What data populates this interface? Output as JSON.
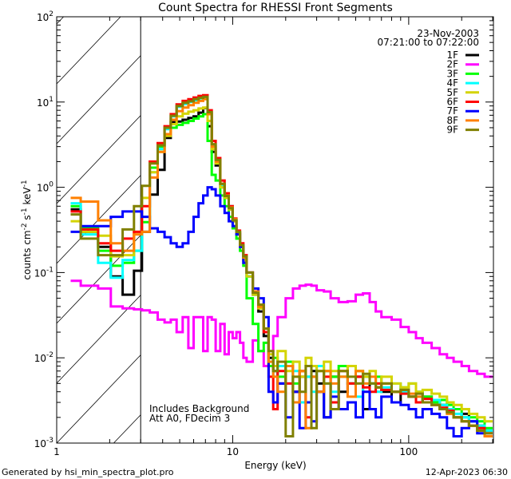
{
  "chart_data": {
    "type": "line",
    "title": "Count Spectra for RHESSI Front Segments",
    "xlabel": "Energy (keV)",
    "ylabel_parts": [
      {
        "t": "counts cm"
      },
      {
        "sup": "-2"
      },
      {
        "t": " s"
      },
      {
        "sup": "-1"
      },
      {
        "t": " keV"
      },
      {
        "sup": "-1"
      }
    ],
    "xscale": "log",
    "yscale": "log",
    "xlim": [
      1,
      303
    ],
    "ylim": [
      0.001,
      100
    ],
    "x_ticks": [
      {
        "v": 1,
        "label": "1"
      },
      {
        "v": 10,
        "label": "10"
      },
      {
        "v": 100,
        "label": "100"
      }
    ],
    "y_ticks": [
      {
        "v": 100,
        "base": "10",
        "exp": "2"
      },
      {
        "v": 10,
        "base": "10",
        "exp": "1"
      },
      {
        "v": 1,
        "base": "10",
        "exp": "0"
      },
      {
        "v": 0.1,
        "base": "10",
        "exp": "-1"
      },
      {
        "v": 0.01,
        "base": "10",
        "exp": "-2"
      },
      {
        "v": 0.001,
        "base": "10",
        "exp": "-3"
      }
    ],
    "grid": false,
    "hatched_region_keV": [
      1,
      3
    ],
    "date": "23-Nov-2003",
    "time_range": "07:21:00 to 07:22:00",
    "legend_placement": "top-right",
    "annotations": [
      "Includes Background",
      "Att A0, FDecim 3"
    ],
    "energy_bin_edges": [
      1.2,
      1.37,
      1.72,
      2.03,
      2.37,
      2.75,
      3.05,
      3.38,
      3.75,
      4.1,
      4.45,
      4.8,
      5.2,
      5.6,
      6.0,
      6.4,
      6.8,
      7.2,
      7.6,
      8.0,
      8.5,
      9,
      9.5,
      10,
      10.5,
      11,
      11.5,
      12,
      13,
      14,
      15,
      16,
      17,
      18,
      20,
      22,
      24,
      26,
      28,
      30,
      33,
      36,
      40,
      45,
      50,
      55,
      60,
      65,
      70,
      80,
      90,
      100,
      110,
      120,
      135,
      150,
      165,
      180,
      200,
      220,
      245,
      270,
      300
    ],
    "series": [
      {
        "name": "1F",
        "color": "#000000",
        "values": [
          0.55,
          0.3,
          0.2,
          0.09,
          0.055,
          0.105,
          0.3,
          0.82,
          1.6,
          3.8,
          5.8,
          5.9,
          6.2,
          6.5,
          6.8,
          7.5,
          8.5,
          5.2,
          2.6,
          1.8,
          1.0,
          0.75,
          0.55,
          0.4,
          0.29,
          0.2,
          0.14,
          0.09,
          0.055,
          0.035,
          0.018,
          0.01,
          0.007,
          0.005,
          0.008,
          0.004,
          0.006,
          0.003,
          0.007,
          0.005,
          0.002,
          0.006,
          0.004,
          0.005,
          0.006,
          0.0025,
          0.005,
          0.0045,
          0.004,
          0.003,
          0.004,
          0.0035,
          0.003,
          0.0035,
          0.003,
          0.0028,
          0.0025,
          0.002,
          0.0022,
          0.0018,
          0.0016,
          0.0014
        ]
      },
      {
        "name": "2F",
        "color": "#ff00ff",
        "values": [
          0.08,
          0.07,
          0.065,
          0.04,
          0.038,
          0.037,
          0.036,
          0.034,
          0.028,
          0.026,
          0.028,
          0.02,
          0.03,
          0.013,
          0.03,
          0.03,
          0.012,
          0.03,
          0.028,
          0.012,
          0.025,
          0.011,
          0.02,
          0.017,
          0.02,
          0.015,
          0.01,
          0.009,
          0.016,
          0.012,
          0.008,
          0.012,
          0.018,
          0.03,
          0.05,
          0.065,
          0.07,
          0.072,
          0.07,
          0.062,
          0.06,
          0.05,
          0.045,
          0.046,
          0.055,
          0.057,
          0.045,
          0.035,
          0.03,
          0.028,
          0.023,
          0.02,
          0.017,
          0.015,
          0.013,
          0.011,
          0.01,
          0.009,
          0.008,
          0.007,
          0.0065,
          0.006
        ]
      },
      {
        "name": "3F",
        "color": "#00ff00",
        "values": [
          0.6,
          0.33,
          0.18,
          0.12,
          0.13,
          0.18,
          0.39,
          1.7,
          3.0,
          4.2,
          5.0,
          5.4,
          5.7,
          6.0,
          6.4,
          6.8,
          7.2,
          3.5,
          1.4,
          1.2,
          0.8,
          0.6,
          0.45,
          0.33,
          0.25,
          0.18,
          0.12,
          0.05,
          0.025,
          0.012,
          0.015,
          0.008,
          0.01,
          0.006,
          0.009,
          0.005,
          0.007,
          0.006,
          0.008,
          0.004,
          0.007,
          0.006,
          0.008,
          0.005,
          0.007,
          0.006,
          0.005,
          0.006,
          0.005,
          0.004,
          0.0045,
          0.005,
          0.004,
          0.0035,
          0.003,
          0.0032,
          0.0028,
          0.0025,
          0.002,
          0.002,
          0.0018,
          0.0015
        ]
      },
      {
        "name": "4F",
        "color": "#00ffff",
        "values": [
          0.65,
          0.28,
          0.13,
          0.087,
          0.14,
          0.18,
          0.45,
          1.5,
          2.8,
          4.8,
          6.8,
          8.8,
          9.5,
          10.0,
          10.5,
          11.0,
          11.2,
          7.4,
          3.1,
          2.0,
          1.05,
          0.8,
          0.6,
          0.42,
          0.3,
          0.2,
          0.15,
          0.09,
          0.055,
          0.04,
          0.02,
          0.009,
          0.006,
          0.008,
          0.005,
          0.007,
          0.003,
          0.006,
          0.004,
          0.008,
          0.005,
          0.004,
          0.006,
          0.005,
          0.0035,
          0.006,
          0.005,
          0.004,
          0.0045,
          0.005,
          0.004,
          0.0035,
          0.004,
          0.003,
          0.0032,
          0.0028,
          0.0025,
          0.0022,
          0.002,
          0.0018,
          0.0016,
          0.0014
        ]
      },
      {
        "name": "5F",
        "color": "#d4d400",
        "values": [
          0.4,
          0.3,
          0.27,
          0.155,
          0.16,
          0.3,
          0.75,
          1.5,
          2.6,
          4.0,
          5.5,
          6.8,
          7.3,
          7.7,
          8.0,
          8.4,
          8.6,
          6.0,
          2.8,
          1.9,
          1.0,
          0.75,
          0.55,
          0.4,
          0.29,
          0.2,
          0.14,
          0.09,
          0.055,
          0.038,
          0.02,
          0.011,
          0.008,
          0.012,
          0.007,
          0.009,
          0.006,
          0.01,
          0.008,
          0.007,
          0.009,
          0.007,
          0.006,
          0.008,
          0.007,
          0.006,
          0.007,
          0.005,
          0.006,
          0.005,
          0.0045,
          0.005,
          0.004,
          0.0042,
          0.0038,
          0.0035,
          0.003,
          0.0028,
          0.0025,
          0.0022,
          0.002,
          0.0018
        ]
      },
      {
        "name": "6F",
        "color": "#ff0000",
        "values": [
          0.52,
          0.32,
          0.22,
          0.18,
          0.25,
          0.3,
          0.6,
          2.0,
          3.3,
          5.2,
          7.2,
          9.4,
          10.3,
          10.8,
          11.3,
          11.8,
          12.0,
          8.0,
          3.5,
          2.2,
          1.2,
          0.85,
          0.6,
          0.43,
          0.31,
          0.22,
          0.16,
          0.1,
          0.06,
          0.04,
          0.02,
          0.006,
          0.0025,
          0.007,
          0.005,
          0.004,
          0.007,
          0.002,
          0.006,
          0.004,
          0.006,
          0.003,
          0.007,
          0.005,
          0.006,
          0.0045,
          0.004,
          0.005,
          0.0042,
          0.004,
          0.0038,
          0.0035,
          0.003,
          0.0033,
          0.0028,
          0.0026,
          0.0024,
          0.002,
          0.0018,
          0.0016,
          0.0015,
          0.0013
        ]
      },
      {
        "name": "7F",
        "color": "#0000ff",
        "values": [
          0.3,
          0.35,
          0.35,
          0.45,
          0.52,
          0.52,
          0.45,
          0.33,
          0.3,
          0.26,
          0.22,
          0.2,
          0.22,
          0.3,
          0.45,
          0.65,
          0.8,
          1.0,
          0.95,
          0.8,
          0.6,
          0.5,
          0.4,
          0.35,
          0.28,
          0.2,
          0.13,
          0.1,
          0.065,
          0.05,
          0.03,
          0.004,
          0.003,
          0.005,
          0.002,
          0.004,
          0.0015,
          0.003,
          0.0018,
          0.004,
          0.002,
          0.0035,
          0.0025,
          0.003,
          0.002,
          0.004,
          0.0025,
          0.002,
          0.0035,
          0.003,
          0.0028,
          0.0025,
          0.002,
          0.0025,
          0.0022,
          0.002,
          0.0015,
          0.0012,
          0.0015,
          0.0018,
          0.0013,
          0.0012
        ]
      },
      {
        "name": "8F",
        "color": "#ff8000",
        "values": [
          0.75,
          0.68,
          0.41,
          0.22,
          0.18,
          0.28,
          0.3,
          1.3,
          2.6,
          4.2,
          6.2,
          7.8,
          8.6,
          9.2,
          9.8,
          10.3,
          10.8,
          7.2,
          3.0,
          2.0,
          1.1,
          0.8,
          0.58,
          0.42,
          0.3,
          0.21,
          0.15,
          0.1,
          0.06,
          0.04,
          0.022,
          0.009,
          0.006,
          0.004,
          0.008,
          0.003,
          0.007,
          0.0015,
          0.006,
          0.004,
          0.007,
          0.005,
          0.006,
          0.0035,
          0.007,
          0.005,
          0.006,
          0.0045,
          0.005,
          0.004,
          0.0042,
          0.0038,
          0.0035,
          0.003,
          0.0028,
          0.0025,
          0.0022,
          0.002,
          0.0018,
          0.0016,
          0.0014,
          0.0012
        ]
      },
      {
        "name": "9F",
        "color": "#808000",
        "values": [
          0.48,
          0.25,
          0.16,
          0.16,
          0.32,
          0.6,
          1.04,
          1.9,
          3.1,
          5.0,
          6.9,
          9.0,
          9.8,
          10.2,
          10.8,
          11.2,
          11.5,
          7.6,
          3.2,
          2.1,
          1.1,
          0.79,
          0.57,
          0.41,
          0.3,
          0.21,
          0.155,
          0.1,
          0.058,
          0.042,
          0.022,
          0.012,
          0.007,
          0.009,
          0.0012,
          0.006,
          0.004,
          0.008,
          0.0015,
          0.007,
          0.005,
          0.0025,
          0.007,
          0.006,
          0.005,
          0.0065,
          0.005,
          0.0045,
          0.005,
          0.004,
          0.0042,
          0.0035,
          0.0038,
          0.003,
          0.0028,
          0.0025,
          0.0023,
          0.002,
          0.0018,
          0.0016,
          0.0014,
          0.0013
        ]
      }
    ]
  },
  "footer": {
    "generated_by": "Generated by hsi_min_spectra_plot.pro",
    "timestamp": "12-Apr-2023 06:30"
  }
}
